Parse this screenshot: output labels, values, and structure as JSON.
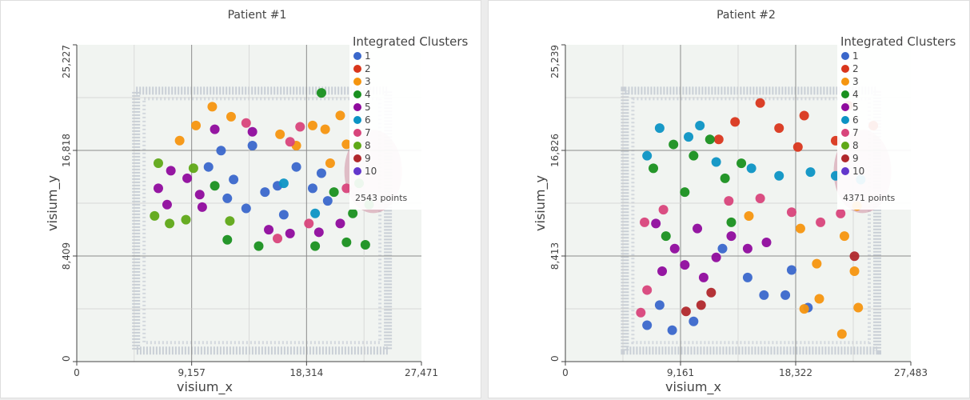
{
  "colors": {
    "1": "#3a67cb",
    "2": "#d9361c",
    "3": "#f5950f",
    "4": "#19901f",
    "5": "#8f0b9d",
    "6": "#0c93c4",
    "7": "#d8457b",
    "8": "#5fa817",
    "9": "#b0282c",
    "10": "#6337cc"
  },
  "panels": [
    {
      "title": "Patient #1",
      "legend_title": "Integrated Clusters",
      "legend_items": [
        "1",
        "2",
        "3",
        "4",
        "5",
        "6",
        "7",
        "8",
        "9",
        "10"
      ],
      "points_label": "2543 points",
      "xlabel": "visium_x",
      "ylabel": "visium_y",
      "xticks": [
        "0",
        "9,157",
        "18,314",
        "27,471"
      ],
      "yticks": [
        "0",
        "8,409",
        "16,818",
        "25,227"
      ]
    },
    {
      "title": "Patient #2",
      "legend_title": "Integrated Clusters",
      "legend_items": [
        "1",
        "2",
        "3",
        "4",
        "5",
        "6",
        "7",
        "8",
        "9",
        "10"
      ],
      "points_label": "4371 points",
      "xlabel": "visium_x",
      "ylabel": "visium_y",
      "xticks": [
        "0",
        "9,161",
        "18,322",
        "27,483"
      ],
      "yticks": [
        "0",
        "8,413",
        "16,826",
        "25,239"
      ]
    }
  ],
  "chart_data": [
    {
      "type": "scatter",
      "title": "Patient #1",
      "xlabel": "visium_x",
      "ylabel": "visium_y",
      "xlim": [
        0,
        27471
      ],
      "ylim": [
        0,
        25227
      ],
      "legend_title": "Integrated Clusters",
      "legend_position": "top-right",
      "point_count": 2543,
      "series": [
        {
          "name": "1",
          "points": [
            [
              10500,
              15500
            ],
            [
              12500,
              14500
            ],
            [
              15000,
              13500
            ],
            [
              17500,
              15500
            ],
            [
              18800,
              13800
            ],
            [
              13500,
              12200
            ],
            [
              16500,
              11700
            ],
            [
              20000,
              12800
            ],
            [
              11500,
              16800
            ],
            [
              14000,
              17200
            ],
            [
              19500,
              15000
            ],
            [
              12000,
              13000
            ],
            [
              16000,
              14000
            ]
          ]
        },
        {
          "name": "2",
          "points": []
        },
        {
          "name": "3",
          "points": [
            [
              9500,
              18800
            ],
            [
              10800,
              20300
            ],
            [
              12300,
              19500
            ],
            [
              16200,
              18100
            ],
            [
              18800,
              18800
            ],
            [
              19800,
              18500
            ],
            [
              21000,
              19600
            ],
            [
              21500,
              17300
            ],
            [
              20200,
              15800
            ],
            [
              8200,
              17600
            ],
            [
              17500,
              17200
            ]
          ]
        },
        {
          "name": "4",
          "points": [
            [
              22000,
              11800
            ],
            [
              23000,
              9300
            ],
            [
              21500,
              9500
            ],
            [
              19000,
              9200
            ],
            [
              14500,
              9200
            ],
            [
              12000,
              9700
            ],
            [
              20500,
              13500
            ],
            [
              22500,
              14200
            ],
            [
              19500,
              21400
            ],
            [
              11000,
              14000
            ],
            [
              23300,
              12500
            ]
          ]
        },
        {
          "name": "5",
          "points": [
            [
              6500,
              13800
            ],
            [
              7500,
              15200
            ],
            [
              8800,
              14600
            ],
            [
              9800,
              13300
            ],
            [
              10000,
              12300
            ],
            [
              7200,
              12500
            ],
            [
              15300,
              10500
            ],
            [
              17000,
              10200
            ],
            [
              19300,
              10300
            ],
            [
              21000,
              11000
            ],
            [
              11000,
              18500
            ],
            [
              14000,
              18300
            ]
          ]
        },
        {
          "name": "6",
          "points": [
            [
              16500,
              14200
            ],
            [
              19000,
              11800
            ]
          ]
        },
        {
          "name": "7",
          "points": [
            [
              17800,
              18700
            ],
            [
              17000,
              17500
            ],
            [
              18500,
              11000
            ],
            [
              13500,
              19000
            ],
            [
              21500,
              13800
            ],
            [
              16000,
              9800
            ]
          ]
        },
        {
          "name": "8",
          "points": [
            [
              6200,
              11600
            ],
            [
              7400,
              11000
            ],
            [
              8700,
              11300
            ],
            [
              9300,
              15400
            ],
            [
              6500,
              15800
            ],
            [
              12200,
              11200
            ]
          ]
        },
        {
          "name": "9",
          "points": []
        },
        {
          "name": "10",
          "points": []
        }
      ]
    },
    {
      "type": "scatter",
      "title": "Patient #2",
      "xlabel": "visium_x",
      "ylabel": "visium_y",
      "xlim": [
        0,
        27483
      ],
      "ylim": [
        0,
        25239
      ],
      "legend_title": "Integrated Clusters",
      "legend_position": "top-right",
      "point_count": 4371,
      "series": [
        {
          "name": "1",
          "points": [
            [
              6500,
              2900
            ],
            [
              8500,
              2500
            ],
            [
              10200,
              3200
            ],
            [
              14500,
              6700
            ],
            [
              17500,
              5300
            ],
            [
              19300,
              4300
            ],
            [
              18000,
              7300
            ],
            [
              15800,
              5300
            ],
            [
              12500,
              9000
            ],
            [
              7500,
              4500
            ]
          ]
        },
        {
          "name": "2",
          "points": [
            [
              15500,
              20600
            ],
            [
              19000,
              19600
            ],
            [
              22500,
              20400
            ],
            [
              17000,
              18600
            ],
            [
              21500,
              17600
            ],
            [
              13500,
              19100
            ],
            [
              24500,
              18800
            ],
            [
              12200,
              17700
            ],
            [
              18500,
              17100
            ]
          ]
        },
        {
          "name": "3",
          "points": [
            [
              22200,
              10000
            ],
            [
              23000,
              7200
            ],
            [
              23300,
              4300
            ],
            [
              22000,
              2200
            ],
            [
              20000,
              7800
            ],
            [
              18700,
              10600
            ],
            [
              20200,
              5000
            ],
            [
              19000,
              4200
            ],
            [
              23200,
              12400
            ],
            [
              14600,
              11600
            ]
          ]
        },
        {
          "name": "4",
          "points": [
            [
              7000,
              15400
            ],
            [
              8600,
              17300
            ],
            [
              10200,
              16400
            ],
            [
              11500,
              17700
            ],
            [
              9500,
              13500
            ],
            [
              12700,
              14600
            ],
            [
              14000,
              15800
            ],
            [
              8000,
              10000
            ],
            [
              13200,
              11100
            ]
          ]
        },
        {
          "name": "5",
          "points": [
            [
              8700,
              9000
            ],
            [
              10500,
              10600
            ],
            [
              12000,
              8300
            ],
            [
              13200,
              10000
            ],
            [
              9500,
              7700
            ],
            [
              11000,
              6700
            ],
            [
              14500,
              9000
            ],
            [
              7700,
              7200
            ],
            [
              16000,
              9500
            ],
            [
              7200,
              11000
            ]
          ]
        },
        {
          "name": "6",
          "points": [
            [
              6500,
              16400
            ],
            [
              7500,
              18600
            ],
            [
              9800,
              17900
            ],
            [
              12000,
              15900
            ],
            [
              14800,
              15400
            ],
            [
              17000,
              14800
            ],
            [
              19500,
              15100
            ],
            [
              21500,
              14800
            ],
            [
              23500,
              14500
            ],
            [
              10700,
              18800
            ]
          ]
        },
        {
          "name": "7",
          "points": [
            [
              6300,
              11100
            ],
            [
              7800,
              12100
            ],
            [
              6500,
              5700
            ],
            [
              6000,
              3900
            ],
            [
              13000,
              12800
            ],
            [
              18000,
              11900
            ],
            [
              20300,
              11100
            ],
            [
              21900,
              11800
            ],
            [
              15500,
              13000
            ]
          ]
        },
        {
          "name": "8",
          "points": []
        },
        {
          "name": "9",
          "points": [
            [
              23000,
              8400
            ],
            [
              10800,
              4500
            ],
            [
              11600,
              5500
            ],
            [
              9600,
              4000
            ]
          ]
        },
        {
          "name": "10",
          "points": []
        }
      ]
    }
  ]
}
